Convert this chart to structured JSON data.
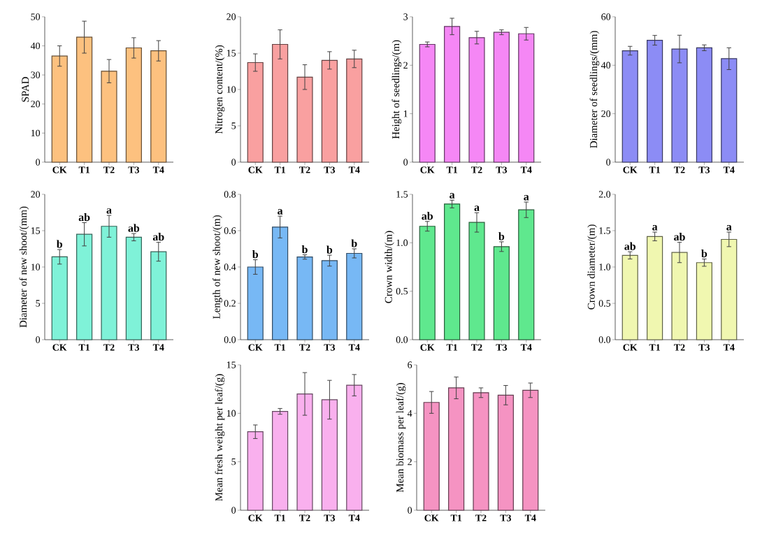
{
  "chart_data": [
    {
      "type": "bar",
      "ylabel": "SPAD",
      "categories": [
        "CK",
        "T1",
        "T2",
        "T3",
        "T4"
      ],
      "values": [
        36.5,
        43,
        31.3,
        39.3,
        38.3
      ],
      "errors": [
        3.5,
        5.5,
        4,
        3.5,
        3.5
      ],
      "color": "#fdc17f",
      "ylim": [
        0,
        50
      ],
      "yticks": [
        0,
        10,
        20,
        30,
        40,
        50
      ]
    },
    {
      "type": "bar",
      "ylabel": "Nitrogen content/(%)",
      "categories": [
        "CK",
        "T1",
        "T2",
        "T3",
        "T4"
      ],
      "values": [
        13.7,
        16.2,
        11.7,
        14,
        14.2
      ],
      "errors": [
        1.2,
        2,
        1.7,
        1.2,
        1.2
      ],
      "color": "#f9a0a0",
      "ylim": [
        0,
        20
      ],
      "yticks": [
        0,
        5,
        10,
        15,
        20
      ]
    },
    {
      "type": "bar",
      "ylabel": "Height of seedlings/(m)",
      "categories": [
        "CK",
        "T1",
        "T2",
        "T3",
        "T4"
      ],
      "values": [
        2.43,
        2.8,
        2.57,
        2.68,
        2.65
      ],
      "errors": [
        0.05,
        0.17,
        0.13,
        0.05,
        0.13
      ],
      "color": "#f587f5",
      "ylim": [
        0,
        3
      ],
      "yticks": [
        0,
        1,
        2,
        3
      ]
    },
    {
      "type": "bar",
      "ylabel": "Diameter of seedlings/(mm)",
      "categories": [
        "CK",
        "T1",
        "T2",
        "T3",
        "T4"
      ],
      "values": [
        46,
        50.3,
        46.7,
        47.2,
        42.7
      ],
      "errors": [
        1.8,
        2,
        5.7,
        1.2,
        4.5
      ],
      "color": "#8c8cf5",
      "ylim": [
        0,
        60
      ],
      "yticks": [
        0,
        20,
        40,
        60
      ]
    },
    {
      "type": "bar",
      "ylabel": "Diameter of new shoot/(mm)",
      "categories": [
        "CK",
        "T1",
        "T2",
        "T3",
        "T4"
      ],
      "values": [
        11.4,
        14.5,
        15.6,
        14.1,
        12.1
      ],
      "errors": [
        1,
        1.6,
        1.5,
        0.5,
        1.3
      ],
      "value_labels": [
        "b",
        "ab",
        "a",
        "ab",
        "ab"
      ],
      "color": "#7ff2d8",
      "ylim": [
        0,
        20
      ],
      "yticks": [
        0,
        5,
        10,
        15,
        20
      ]
    },
    {
      "type": "bar",
      "ylabel": "Length of new shoot/(m)",
      "categories": [
        "CK",
        "T1",
        "T2",
        "T3",
        "T4"
      ],
      "values": [
        0.4,
        0.62,
        0.455,
        0.435,
        0.475
      ],
      "errors": [
        0.04,
        0.06,
        0.012,
        0.03,
        0.025
      ],
      "value_labels": [
        "b",
        "a",
        "b",
        "b",
        "b"
      ],
      "color": "#77b8f5",
      "ylim": [
        0,
        0.8
      ],
      "yticks": [
        {
          "value": 0,
          "label": "0.0"
        },
        0.2,
        0.4,
        0.6,
        0.8
      ]
    },
    {
      "type": "bar",
      "ylabel": "Crown width/(m)",
      "categories": [
        "CK",
        "T1",
        "T2",
        "T3",
        "T4"
      ],
      "values": [
        1.17,
        1.4,
        1.21,
        0.96,
        1.34
      ],
      "errors": [
        0.05,
        0.04,
        0.1,
        0.05,
        0.08
      ],
      "value_labels": [
        "ab",
        "a",
        "a",
        "b",
        "a"
      ],
      "color": "#5fe88e",
      "ylim": [
        0,
        1.5
      ],
      "yticks": [
        {
          "value": 0,
          "label": "0.0"
        },
        0.5,
        {
          "value": 1,
          "label": "1.0"
        },
        1.5
      ]
    },
    {
      "type": "bar",
      "ylabel": "Crown diameter/(m)",
      "categories": [
        "CK",
        "T1",
        "T2",
        "T3",
        "T4"
      ],
      "values": [
        1.16,
        1.42,
        1.2,
        1.06,
        1.38
      ],
      "errors": [
        0.05,
        0.06,
        0.14,
        0.05,
        0.1
      ],
      "value_labels": [
        "ab",
        "a",
        "ab",
        "b",
        "a"
      ],
      "color": "#f0f7b0",
      "ylim": [
        0,
        2
      ],
      "yticks": [
        {
          "value": 0,
          "label": "0.0"
        },
        0.5,
        {
          "value": 1,
          "label": "1.0"
        },
        1.5,
        {
          "value": 2,
          "label": "2.0"
        }
      ]
    },
    {
      "type": "bar",
      "ylabel": "Mean fresh weight per leaf/(g)",
      "categories": [
        "CK",
        "T1",
        "T2",
        "T3",
        "T4"
      ],
      "values": [
        8.1,
        10.2,
        12,
        11.4,
        12.9
      ],
      "errors": [
        0.7,
        0.3,
        2.2,
        2,
        1.1
      ],
      "color": "#f9b0ee",
      "ylim": [
        0,
        15
      ],
      "yticks": [
        0,
        5,
        10,
        15
      ]
    },
    {
      "type": "bar",
      "ylabel": "Mean biomass per leaf/(g)",
      "categories": [
        "CK",
        "T1",
        "T2",
        "T3",
        "T4"
      ],
      "values": [
        4.45,
        5.05,
        4.85,
        4.75,
        4.95
      ],
      "errors": [
        0.45,
        0.45,
        0.2,
        0.4,
        0.3
      ],
      "color": "#f593c2",
      "ylim": [
        0,
        6
      ],
      "yticks": [
        0,
        2,
        4,
        6
      ]
    }
  ]
}
